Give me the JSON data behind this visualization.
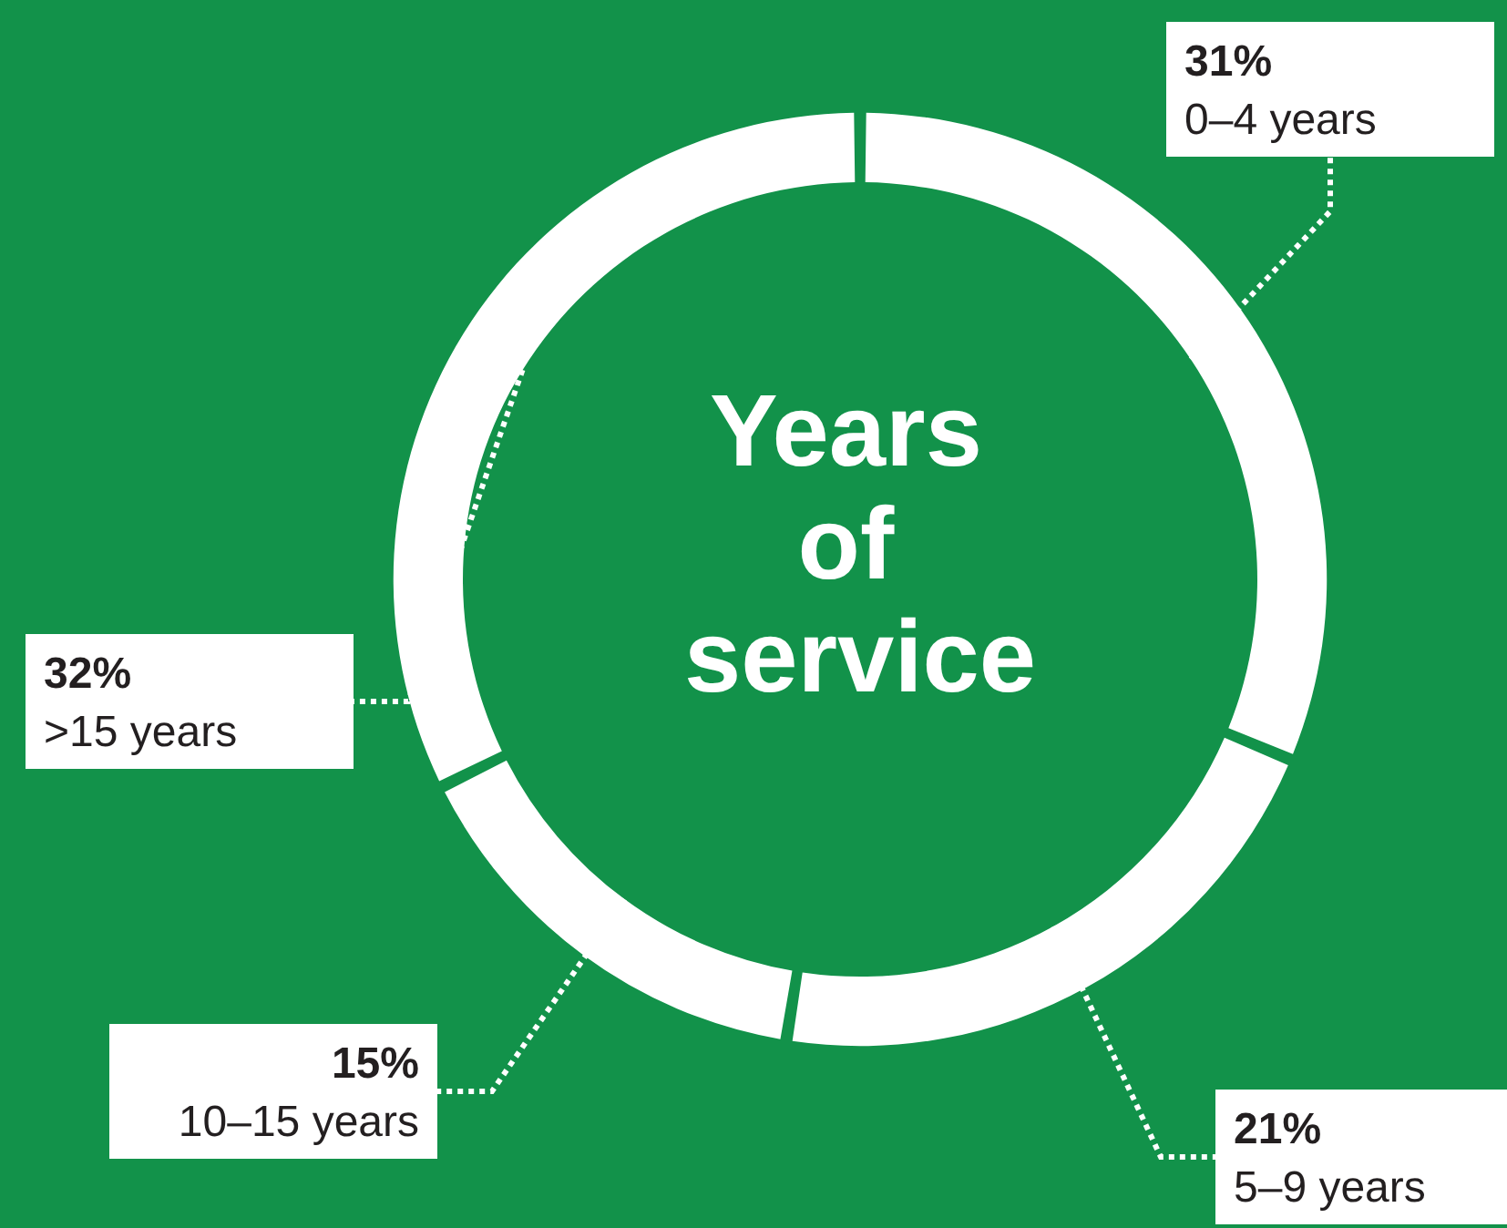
{
  "chart_data": {
    "type": "donut",
    "title": "Years of service",
    "categories": [
      "0–4 years",
      "5–9 years",
      "10–15 years",
      ">15 years"
    ],
    "values": [
      31,
      21,
      15,
      32
    ],
    "colors": [
      "#ffffff",
      "#ffffff",
      "#ffffff",
      "#ffffff"
    ],
    "value_labels": [
      "31%",
      "21%",
      "15%",
      "32%"
    ],
    "legend": false
  }
}
